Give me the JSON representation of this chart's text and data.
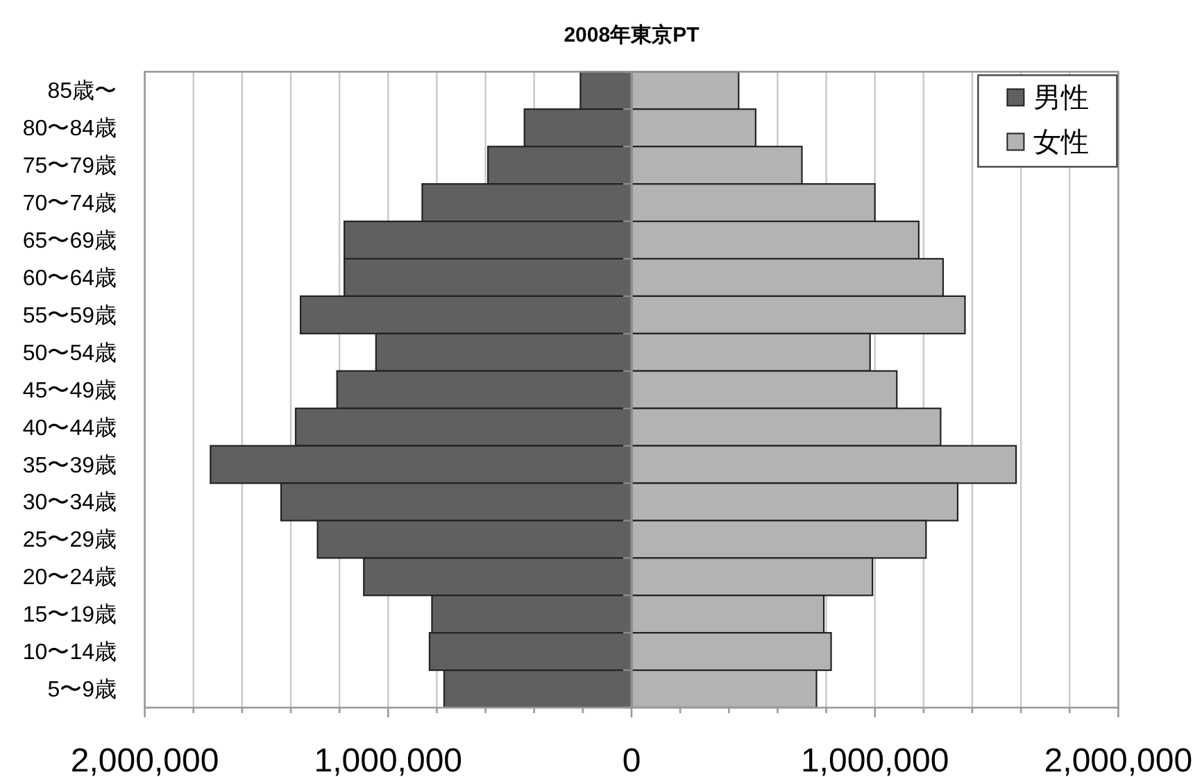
{
  "chart_data": {
    "type": "bar",
    "title": "2008年東京PT",
    "orientation": "horizontal",
    "stacked": true,
    "categories": [
      "85歳〜",
      "80〜84歳",
      "75〜79歳",
      "70〜74歳",
      "65〜69歳",
      "60〜64歳",
      "55〜59歳",
      "50〜54歳",
      "45〜49歳",
      "40〜44歳",
      "35〜39歳",
      "30〜34歳",
      "25〜29歳",
      "20〜24歳",
      "15〜19歳",
      "10〜14歳",
      "5〜9歳"
    ],
    "series": [
      {
        "name": "男性",
        "color": "#606060",
        "values": [
          -210000,
          -440000,
          -590000,
          -860000,
          -1180000,
          -1180000,
          -1360000,
          -1050000,
          -1210000,
          -1380000,
          -1730000,
          -1440000,
          -1290000,
          -1100000,
          -820000,
          -830000,
          -770000
        ]
      },
      {
        "name": "女性",
        "color": "#b3b3b3",
        "values": [
          440000,
          510000,
          700000,
          1000000,
          1180000,
          1280000,
          1370000,
          980000,
          1090000,
          1270000,
          1580000,
          1340000,
          1210000,
          990000,
          790000,
          820000,
          760000
        ]
      }
    ],
    "xlim": [
      -2000000,
      2000000
    ],
    "xticks": [
      {
        "value": -2000000,
        "label": "2,000,000"
      },
      {
        "value": -1800000,
        "label": null
      },
      {
        "value": -1600000,
        "label": null
      },
      {
        "value": -1400000,
        "label": null
      },
      {
        "value": -1200000,
        "label": null
      },
      {
        "value": -1000000,
        "label": "1,000,000"
      },
      {
        "value": -800000,
        "label": null
      },
      {
        "value": -600000,
        "label": null
      },
      {
        "value": -400000,
        "label": null
      },
      {
        "value": -200000,
        "label": null
      },
      0,
      {
        "value": 200000,
        "label": null
      },
      {
        "value": 400000,
        "label": null
      },
      {
        "value": 600000,
        "label": null
      },
      {
        "value": 800000,
        "label": null
      },
      {
        "value": 1000000,
        "label": "1,000,000"
      },
      {
        "value": 1200000,
        "label": null
      },
      {
        "value": 1400000,
        "label": null
      },
      {
        "value": 1600000,
        "label": null
      },
      {
        "value": 1800000,
        "label": null
      },
      {
        "value": 2000000,
        "label": "2,000,000"
      }
    ],
    "grid": "x",
    "legend": "top right"
  }
}
